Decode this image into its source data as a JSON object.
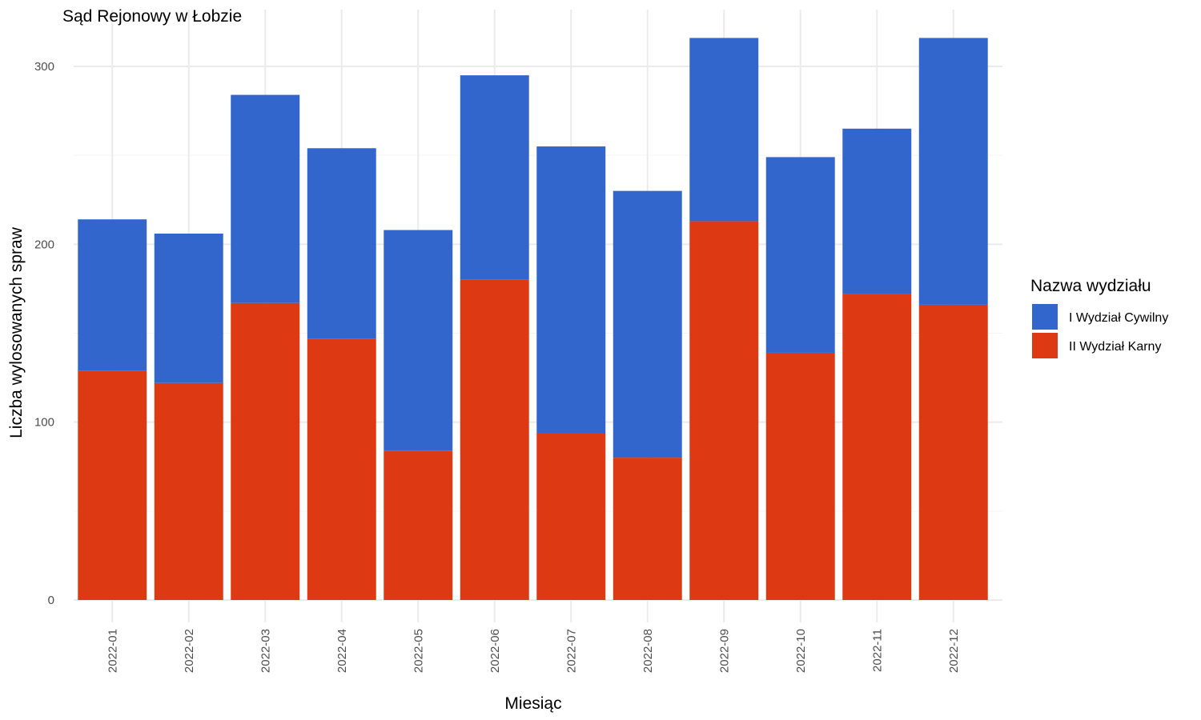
{
  "chart_data": {
    "type": "bar",
    "stacked": true,
    "title": "Sąd Rejonowy w Łobzie",
    "xlabel": "Miesiąc",
    "ylabel": "Liczba wylosowanych spraw",
    "categories": [
      "2022-01",
      "2022-02",
      "2022-03",
      "2022-04",
      "2022-05",
      "2022-06",
      "2022-07",
      "2022-08",
      "2022-09",
      "2022-10",
      "2022-11",
      "2022-12"
    ],
    "series": [
      {
        "name": "II Wydział Karny",
        "color": "#dd3912",
        "values": [
          129,
          122,
          167,
          147,
          84,
          180,
          94,
          80,
          213,
          139,
          172,
          166
        ]
      },
      {
        "name": "I Wydział Cywilny",
        "color": "#3366cc",
        "values": [
          85,
          84,
          117,
          107,
          124,
          115,
          161,
          150,
          103,
          110,
          93,
          150
        ]
      }
    ],
    "ylim": [
      0,
      316
    ],
    "yticks": [
      0,
      100,
      200,
      300
    ],
    "grid": true,
    "legend": {
      "title": "Nazwa wydziału",
      "position": "right",
      "entries": [
        {
          "label": "I Wydział Cywilny",
          "color": "#3366cc"
        },
        {
          "label": "II Wydział Karny",
          "color": "#dd3912"
        }
      ]
    }
  }
}
